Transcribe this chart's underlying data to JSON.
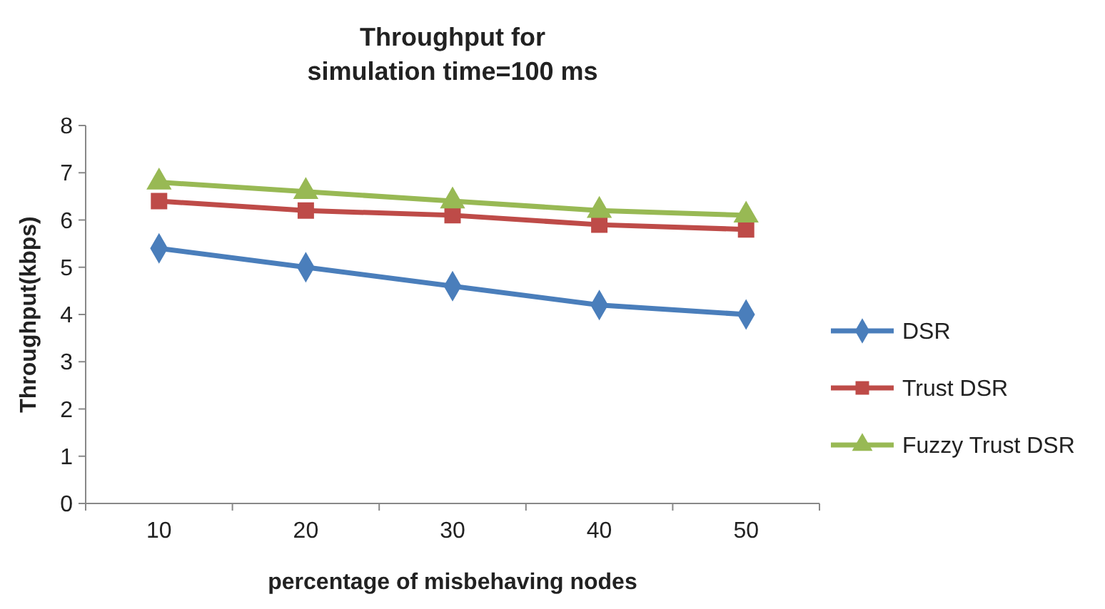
{
  "chart_data": {
    "type": "line",
    "title": "Throughput for simulation time=100 ms",
    "xlabel": "percentage of misbehaving nodes",
    "ylabel": "Throughput(kbps)",
    "categories": [
      "10",
      "20",
      "30",
      "40",
      "50"
    ],
    "ylim": [
      0,
      8
    ],
    "yticks": [
      0,
      1,
      2,
      3,
      4,
      5,
      6,
      7,
      8
    ],
    "grid": false,
    "legend": "right",
    "line_style": "solid",
    "series": [
      {
        "name": "DSR",
        "color": "#4a7ebb",
        "marker": "diamond",
        "values": [
          5.4,
          5.0,
          4.6,
          4.2,
          4.0
        ]
      },
      {
        "name": "Trust DSR",
        "color": "#be4b48",
        "marker": "square",
        "values": [
          6.4,
          6.2,
          6.1,
          5.9,
          5.8
        ]
      },
      {
        "name": "Fuzzy Trust DSR",
        "color": "#98b954",
        "marker": "triangle",
        "values": [
          6.8,
          6.6,
          6.4,
          6.2,
          6.1
        ]
      }
    ]
  }
}
